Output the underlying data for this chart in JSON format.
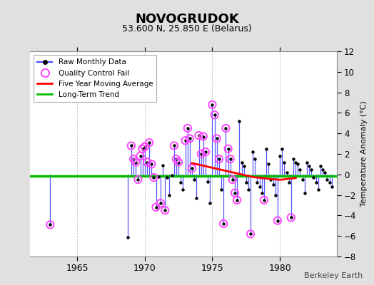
{
  "title": "NOVOGRUDOK",
  "subtitle": "53.600 N, 25.850 E (Belarus)",
  "ylabel": "Temperature Anomaly (°C)",
  "credit": "Berkeley Earth",
  "ylim": [
    -8,
    12
  ],
  "yticks": [
    -8,
    -6,
    -4,
    -2,
    0,
    2,
    4,
    6,
    8,
    10,
    12
  ],
  "xlim": [
    1961.5,
    1984.2
  ],
  "xticks": [
    1965,
    1970,
    1975,
    1980
  ],
  "bg_color": "#e0e0e0",
  "plot_bg_color": "#ffffff",
  "grid_color": "#c8c8c8",
  "raw_line_color": "#4444ff",
  "raw_dot_color": "#000000",
  "qc_fail_color": "#ff44ff",
  "moving_avg_color": "#ff0000",
  "trend_color": "#00bb00",
  "raw_monthly": [
    [
      1963.0,
      -4.9
    ],
    [
      1968.75,
      -6.1
    ],
    [
      1969.0,
      2.8
    ],
    [
      1969.17,
      1.5
    ],
    [
      1969.33,
      1.2
    ],
    [
      1969.5,
      -0.5
    ],
    [
      1969.67,
      1.8
    ],
    [
      1969.83,
      2.5
    ],
    [
      1970.0,
      2.7
    ],
    [
      1970.17,
      1.2
    ],
    [
      1970.33,
      3.1
    ],
    [
      1970.5,
      1.0
    ],
    [
      1970.67,
      -0.3
    ],
    [
      1970.83,
      -3.2
    ],
    [
      1971.0,
      -0.2
    ],
    [
      1971.17,
      -2.8
    ],
    [
      1971.33,
      0.9
    ],
    [
      1971.5,
      -3.5
    ],
    [
      1971.67,
      -0.3
    ],
    [
      1971.83,
      -2.0
    ],
    [
      1972.0,
      -0.1
    ],
    [
      1972.17,
      2.8
    ],
    [
      1972.33,
      1.5
    ],
    [
      1972.5,
      1.2
    ],
    [
      1972.67,
      -0.8
    ],
    [
      1972.83,
      -1.5
    ],
    [
      1973.0,
      3.3
    ],
    [
      1973.17,
      4.5
    ],
    [
      1973.33,
      3.5
    ],
    [
      1973.5,
      0.6
    ],
    [
      1973.67,
      -0.5
    ],
    [
      1973.83,
      -2.3
    ],
    [
      1974.0,
      3.8
    ],
    [
      1974.17,
      2.0
    ],
    [
      1974.33,
      3.7
    ],
    [
      1974.5,
      2.2
    ],
    [
      1974.67,
      -0.7
    ],
    [
      1974.83,
      -2.8
    ],
    [
      1975.0,
      6.8
    ],
    [
      1975.17,
      5.8
    ],
    [
      1975.33,
      3.5
    ],
    [
      1975.5,
      1.5
    ],
    [
      1975.67,
      -1.5
    ],
    [
      1975.83,
      -4.8
    ],
    [
      1976.0,
      4.5
    ],
    [
      1976.17,
      2.5
    ],
    [
      1976.33,
      1.5
    ],
    [
      1976.5,
      -0.5
    ],
    [
      1976.67,
      -1.8
    ],
    [
      1976.83,
      -2.5
    ],
    [
      1977.0,
      5.2
    ],
    [
      1977.17,
      1.2
    ],
    [
      1977.33,
      0.8
    ],
    [
      1977.5,
      -0.8
    ],
    [
      1977.67,
      -1.5
    ],
    [
      1977.83,
      -5.8
    ],
    [
      1978.0,
      2.2
    ],
    [
      1978.17,
      1.5
    ],
    [
      1978.33,
      -0.8
    ],
    [
      1978.5,
      -1.2
    ],
    [
      1978.67,
      -1.8
    ],
    [
      1978.83,
      -2.5
    ],
    [
      1979.0,
      2.5
    ],
    [
      1979.17,
      1.0
    ],
    [
      1979.33,
      -0.5
    ],
    [
      1979.5,
      -1.0
    ],
    [
      1979.67,
      -2.0
    ],
    [
      1979.83,
      -4.5
    ],
    [
      1980.0,
      1.8
    ],
    [
      1980.17,
      2.5
    ],
    [
      1980.33,
      1.2
    ],
    [
      1980.5,
      0.2
    ],
    [
      1980.67,
      -0.8
    ],
    [
      1980.83,
      -4.2
    ],
    [
      1981.0,
      1.5
    ],
    [
      1981.17,
      1.2
    ],
    [
      1981.33,
      1.0
    ],
    [
      1981.5,
      0.5
    ],
    [
      1981.67,
      -0.5
    ],
    [
      1981.83,
      -1.8
    ],
    [
      1982.0,
      1.2
    ],
    [
      1982.17,
      0.8
    ],
    [
      1982.33,
      0.5
    ],
    [
      1982.5,
      -0.3
    ],
    [
      1982.67,
      -0.8
    ],
    [
      1982.83,
      -1.5
    ],
    [
      1983.0,
      0.8
    ],
    [
      1983.17,
      0.5
    ],
    [
      1983.33,
      0.2
    ],
    [
      1983.5,
      -0.5
    ],
    [
      1983.67,
      -0.8
    ],
    [
      1983.83,
      -1.2
    ]
  ],
  "qc_fail_points": [
    [
      1963.0,
      -4.9
    ],
    [
      1969.0,
      2.8
    ],
    [
      1969.17,
      1.5
    ],
    [
      1969.33,
      1.2
    ],
    [
      1969.5,
      -0.5
    ],
    [
      1969.67,
      1.8
    ],
    [
      1969.83,
      2.5
    ],
    [
      1970.0,
      2.7
    ],
    [
      1970.17,
      1.2
    ],
    [
      1970.33,
      3.1
    ],
    [
      1970.5,
      1.0
    ],
    [
      1970.67,
      -0.3
    ],
    [
      1970.83,
      -3.2
    ],
    [
      1971.17,
      -2.8
    ],
    [
      1971.5,
      -3.5
    ],
    [
      1972.17,
      2.8
    ],
    [
      1972.33,
      1.5
    ],
    [
      1972.5,
      1.2
    ],
    [
      1973.0,
      3.3
    ],
    [
      1973.17,
      4.5
    ],
    [
      1973.33,
      3.5
    ],
    [
      1973.5,
      0.6
    ],
    [
      1974.0,
      3.8
    ],
    [
      1974.17,
      2.0
    ],
    [
      1974.33,
      3.7
    ],
    [
      1974.5,
      2.2
    ],
    [
      1975.0,
      6.8
    ],
    [
      1975.17,
      5.8
    ],
    [
      1975.33,
      3.5
    ],
    [
      1975.5,
      1.5
    ],
    [
      1975.83,
      -4.8
    ],
    [
      1976.0,
      4.5
    ],
    [
      1976.17,
      2.5
    ],
    [
      1976.33,
      1.5
    ],
    [
      1976.5,
      -0.5
    ],
    [
      1976.67,
      -1.8
    ],
    [
      1976.83,
      -2.5
    ],
    [
      1977.83,
      -5.8
    ],
    [
      1978.83,
      -2.5
    ],
    [
      1979.83,
      -4.5
    ],
    [
      1980.83,
      -4.2
    ]
  ],
  "moving_avg": [
    [
      1973.5,
      1.1
    ],
    [
      1973.67,
      1.05
    ],
    [
      1973.83,
      1.0
    ],
    [
      1974.0,
      0.95
    ],
    [
      1974.17,
      0.9
    ],
    [
      1974.33,
      0.85
    ],
    [
      1974.5,
      0.8
    ],
    [
      1974.67,
      0.75
    ],
    [
      1974.83,
      0.7
    ],
    [
      1975.0,
      0.65
    ],
    [
      1975.17,
      0.6
    ],
    [
      1975.33,
      0.55
    ],
    [
      1975.5,
      0.5
    ],
    [
      1975.67,
      0.45
    ],
    [
      1975.83,
      0.4
    ],
    [
      1976.0,
      0.35
    ],
    [
      1976.17,
      0.3
    ],
    [
      1976.33,
      0.25
    ],
    [
      1976.5,
      0.2
    ],
    [
      1976.67,
      0.15
    ],
    [
      1976.83,
      0.1
    ],
    [
      1977.0,
      0.05
    ],
    [
      1977.17,
      0.0
    ],
    [
      1977.33,
      -0.05
    ],
    [
      1977.5,
      -0.1
    ],
    [
      1977.67,
      -0.15
    ],
    [
      1977.83,
      -0.2
    ],
    [
      1978.0,
      -0.25
    ],
    [
      1978.17,
      -0.28
    ],
    [
      1978.33,
      -0.3
    ],
    [
      1978.5,
      -0.32
    ],
    [
      1978.67,
      -0.35
    ],
    [
      1978.83,
      -0.38
    ],
    [
      1979.0,
      -0.4
    ],
    [
      1979.17,
      -0.42
    ],
    [
      1979.33,
      -0.45
    ],
    [
      1979.5,
      -0.47
    ],
    [
      1979.67,
      -0.48
    ],
    [
      1979.83,
      -0.5
    ],
    [
      1980.0,
      -0.52
    ],
    [
      1980.17,
      -0.5
    ],
    [
      1980.33,
      -0.48
    ],
    [
      1980.5,
      -0.45
    ],
    [
      1980.67,
      -0.42
    ],
    [
      1980.83,
      -0.4
    ],
    [
      1981.0,
      -0.38
    ],
    [
      1981.17,
      -0.35
    ]
  ],
  "trend_x": [
    1961.5,
    1984.2
  ],
  "trend_y": [
    -0.18,
    -0.18
  ]
}
